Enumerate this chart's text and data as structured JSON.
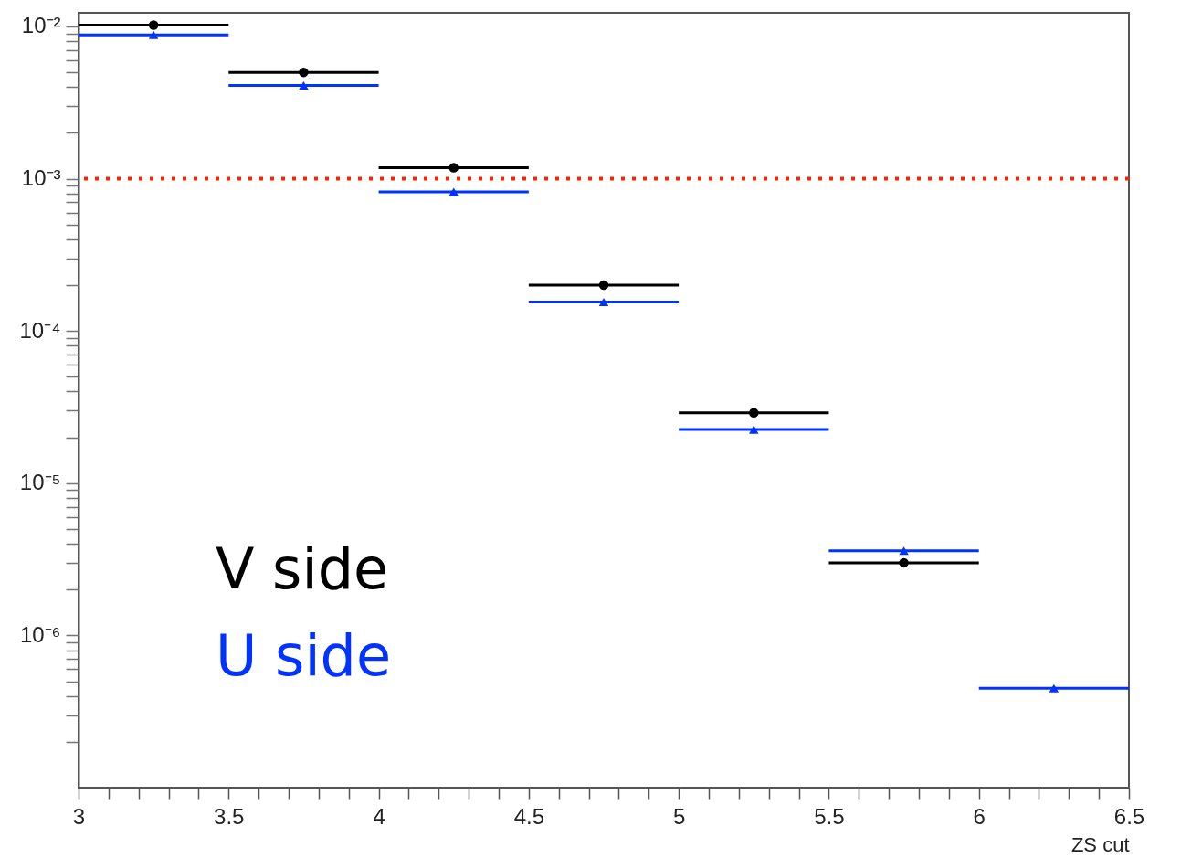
{
  "chart_data": {
    "type": "scatter",
    "xlabel": "ZS cut",
    "log": "y",
    "grid": false,
    "legend": "bottom left",
    "x": [
      3.25,
      3.75,
      4.25,
      4.75,
      5.25,
      5.75,
      6.25
    ],
    "series": [
      {
        "name": "V side",
        "color": "#000000",
        "marker": "circle",
        "values": [
          0.0102,
          0.005,
          0.00118,
          0.0002,
          2.9e-05,
          3e-06,
          null
        ],
        "xerrors": [
          0.25,
          0.25,
          0.25,
          0.25,
          0.25,
          0.25,
          null
        ]
      },
      {
        "name": "U side",
        "color": "#0033ff",
        "marker": "triangle",
        "values": [
          0.0088,
          0.0041,
          0.00082,
          0.000155,
          2.25e-05,
          3.6e-06,
          4.5e-07
        ],
        "xerrors": [
          0.25,
          0.25,
          0.25,
          0.25,
          0.25,
          0.25,
          0.25
        ]
      }
    ],
    "ref_lines": [
      {
        "axis": "y",
        "value": 0.001,
        "color": "#ff2200",
        "line_style": "dotted"
      }
    ],
    "xlim": [
      3,
      6.5
    ],
    "xticks": [
      3,
      {
        "value": 3.1,
        "label": null
      },
      {
        "value": 3.2,
        "label": null
      },
      {
        "value": 3.3,
        "label": null
      },
      {
        "value": 3.4,
        "label": null
      },
      3.5,
      {
        "value": 3.6,
        "label": null
      },
      {
        "value": 3.7,
        "label": null
      },
      {
        "value": 3.8,
        "label": null
      },
      {
        "value": 3.9,
        "label": null
      },
      4,
      {
        "value": 4.1,
        "label": null
      },
      {
        "value": 4.2,
        "label": null
      },
      {
        "value": 4.3,
        "label": null
      },
      {
        "value": 4.4,
        "label": null
      },
      4.5,
      {
        "value": 4.6,
        "label": null
      },
      {
        "value": 4.7,
        "label": null
      },
      {
        "value": 4.8,
        "label": null
      },
      {
        "value": 4.9,
        "label": null
      },
      5,
      {
        "value": 5.1,
        "label": null
      },
      {
        "value": 5.2,
        "label": null
      },
      {
        "value": 5.3,
        "label": null
      },
      {
        "value": 5.4,
        "label": null
      },
      5.5,
      {
        "value": 5.6,
        "label": null
      },
      {
        "value": 5.7,
        "label": null
      },
      {
        "value": 5.8,
        "label": null
      },
      {
        "value": 5.9,
        "label": null
      },
      6,
      {
        "value": 6.1,
        "label": null
      },
      {
        "value": 6.2,
        "label": null
      },
      {
        "value": 6.3,
        "label": null
      },
      {
        "value": 6.4,
        "label": null
      },
      6.5
    ],
    "ylim": [
      1e-07,
      0.0123
    ],
    "yticks": [
      {
        "value": 2e-07,
        "label": null
      },
      {
        "value": 3e-07,
        "label": null
      },
      {
        "value": 4e-07,
        "label": null
      },
      {
        "value": 5e-07,
        "label": null
      },
      {
        "value": 6e-07,
        "label": null
      },
      {
        "value": 7e-07,
        "label": null
      },
      {
        "value": 8e-07,
        "label": null
      },
      {
        "value": 9e-07,
        "label": null
      },
      {
        "value": 1e-06,
        "label": "10⁻⁶"
      },
      {
        "value": 2e-06,
        "label": null
      },
      {
        "value": 3e-06,
        "label": null
      },
      {
        "value": 4e-06,
        "label": null
      },
      {
        "value": 5e-06,
        "label": null
      },
      {
        "value": 6e-06,
        "label": null
      },
      {
        "value": 7e-06,
        "label": null
      },
      {
        "value": 8e-06,
        "label": null
      },
      {
        "value": 9e-06,
        "label": null
      },
      {
        "value": 1e-05,
        "label": "10⁻⁵"
      },
      {
        "value": 2e-05,
        "label": null
      },
      {
        "value": 3e-05,
        "label": null
      },
      {
        "value": 4e-05,
        "label": null
      },
      {
        "value": 5e-05,
        "label": null
      },
      {
        "value": 6e-05,
        "label": null
      },
      {
        "value": 7e-05,
        "label": null
      },
      {
        "value": 8e-05,
        "label": null
      },
      {
        "value": 9e-05,
        "label": null
      },
      {
        "value": 0.0001,
        "label": "10⁻⁴"
      },
      {
        "value": 0.0002,
        "label": null
      },
      {
        "value": 0.0003,
        "label": null
      },
      {
        "value": 0.0004,
        "label": null
      },
      {
        "value": 0.0005,
        "label": null
      },
      {
        "value": 0.0006,
        "label": null
      },
      {
        "value": 0.0007,
        "label": null
      },
      {
        "value": 0.0008,
        "label": null
      },
      {
        "value": 0.0009,
        "label": null
      },
      {
        "value": 0.001,
        "label": "10⁻³"
      },
      {
        "value": 0.002,
        "label": null
      },
      {
        "value": 0.003,
        "label": null
      },
      {
        "value": 0.004,
        "label": null
      },
      {
        "value": 0.005,
        "label": null
      },
      {
        "value": 0.006,
        "label": null
      },
      {
        "value": 0.007,
        "label": null
      },
      {
        "value": 0.008,
        "label": null
      },
      {
        "value": 0.009,
        "label": null
      },
      {
        "value": 0.01,
        "label": "10⁻²"
      }
    ]
  }
}
